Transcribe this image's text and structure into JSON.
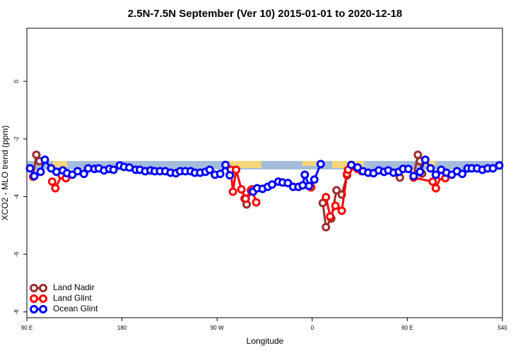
{
  "chart_data": {
    "type": "line",
    "title": "2.5N-7.5N September (Ver 10)   2015-01-01 to 2020-12-18",
    "xlabel": "Longitude",
    "ylabel": "XCO2 - MLO trend (ppm)",
    "xlim": [
      90,
      540
    ],
    "ylim": [
      -8.2,
      1.84
    ],
    "xticks": [
      {
        "value": 90,
        "label": "90 E"
      },
      180,
      {
        "value": 270,
        "label": "90 W"
      },
      {
        "value": 360,
        "label": "0"
      },
      {
        "value": 450,
        "label": "90 E"
      },
      540
    ],
    "yticks": [
      0,
      -2,
      -4,
      -6,
      -8
    ],
    "legend": "bottom-left",
    "series": [
      {
        "name": "Land Nadir",
        "color": "#9b2d2d",
        "x": [
          96,
          99,
          102,
          null,
          296,
          298,
          302,
          null,
          370,
          373,
          378,
          383,
          388,
          393,
          null,
          443,
          null,
          456,
          460,
          462,
          464
        ],
        "values": [
          -3.31,
          -2.55,
          -2.77,
          null,
          -4.07,
          -4.27,
          -3.78,
          null,
          -4.22,
          -5.06,
          -4.76,
          -3.78,
          -3.93,
          -3.26,
          null,
          -3.34,
          null,
          -3.31,
          -2.55,
          -2.77,
          -3.2
        ]
      },
      {
        "name": "Land Glint",
        "color": "#ff0000",
        "x": [
          96,
          null,
          114,
          117,
          123,
          127,
          null,
          283,
          285,
          288,
          293,
          297,
          303,
          307,
          null,
          359,
          null,
          373,
          377,
          382,
          388,
          393,
          394,
          403,
          407,
          null,
          456,
          474,
          477,
          482,
          486
        ],
        "values": [
          -3.31,
          null,
          -3.48,
          -3.71,
          -3.26,
          -3.36,
          null,
          -3.07,
          -3.83,
          -3.07,
          -3.75,
          -4.07,
          -3.75,
          -4.2,
          null,
          -3.68,
          null,
          -4.02,
          -4.69,
          -4.32,
          -4.49,
          -3.21,
          -3.07,
          -3.04,
          -3.12,
          null,
          -3.34,
          -3.48,
          -3.71,
          -3.29,
          -3.36
        ]
      },
      {
        "name": "Ocean Glint",
        "color": "#0000ff",
        "x": [
          93,
          97,
          103,
          107,
          113,
          118,
          124,
          128,
          133,
          138,
          144,
          148,
          154,
          158,
          163,
          168,
          172,
          178,
          182,
          187,
          193,
          197,
          202,
          207,
          211,
          216,
          221,
          226,
          231,
          235,
          240,
          245,
          249,
          254,
          259,
          263,
          268,
          273,
          278,
          282,
          null,
          304,
          308,
          313,
          318,
          322,
          328,
          332,
          337,
          342,
          347,
          351,
          353,
          357,
          362,
          368,
          null,
          397,
          403,
          408,
          413,
          418,
          423,
          428,
          432,
          437,
          442,
          446,
          451,
          456,
          462,
          467,
          472,
          477,
          482,
          487,
          492,
          497,
          502,
          507,
          511,
          516,
          521,
          526,
          531,
          537
        ],
        "values": [
          -3.02,
          -3.29,
          -3.14,
          -2.72,
          -3.02,
          -3.14,
          -3.09,
          -3.19,
          -3.24,
          -3.12,
          -3.21,
          -3.02,
          -3.04,
          -3.02,
          -3.09,
          -3.04,
          -3.07,
          -2.92,
          -2.97,
          -2.99,
          -3.07,
          -3.07,
          -3.12,
          -3.09,
          -3.12,
          -3.12,
          -3.12,
          -3.17,
          -3.19,
          -3.12,
          -3.12,
          -3.12,
          -3.17,
          -3.17,
          -3.14,
          -3.07,
          -3.24,
          -3.21,
          -2.9,
          -3.26,
          null,
          -3.83,
          -3.71,
          -3.73,
          -3.66,
          -3.58,
          -3.48,
          -3.51,
          -3.53,
          -3.66,
          -3.66,
          -3.61,
          -3.24,
          -3.63,
          -3.41,
          -2.87,
          null,
          -2.9,
          -2.99,
          -3.12,
          -3.17,
          -3.19,
          -3.09,
          -3.14,
          -3.09,
          -3.17,
          -3.14,
          -3.04,
          -3.04,
          -3.29,
          -3.14,
          -2.72,
          -3.02,
          -3.24,
          -3.07,
          -3.17,
          -3.24,
          -3.12,
          -3.21,
          -3.02,
          -3.02,
          -3.02,
          -3.07,
          -3.02,
          -3.02,
          -2.92
        ]
      }
    ]
  }
}
